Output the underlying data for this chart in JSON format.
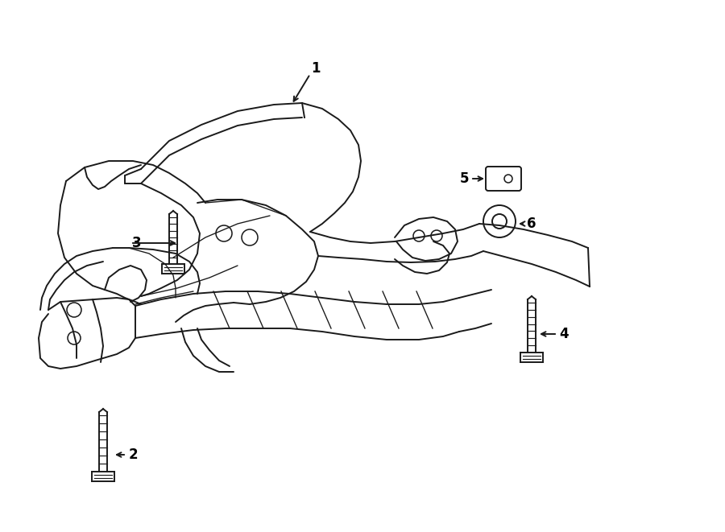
{
  "bg_color": "#ffffff",
  "line_color": "#1a1a1a",
  "line_width": 1.4,
  "label_fontsize": 12,
  "fig_width": 9.0,
  "fig_height": 6.61,
  "dpi": 100
}
